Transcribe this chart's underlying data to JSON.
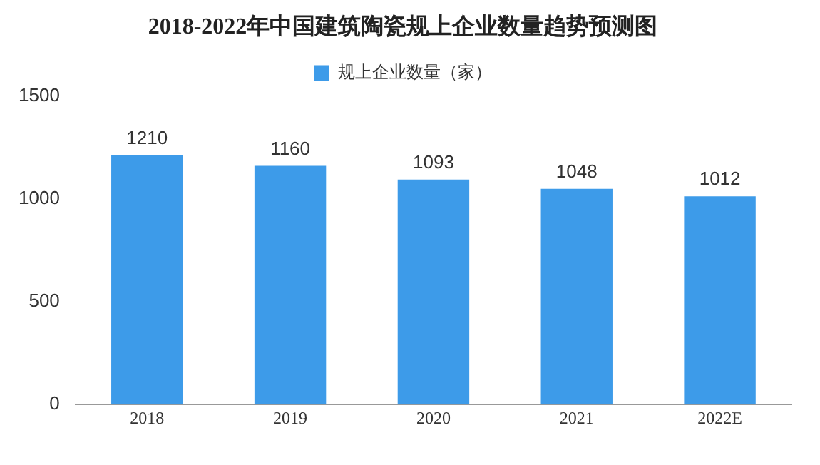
{
  "chart_data": {
    "type": "bar",
    "title": "2018-2022年中国建筑陶瓷规上企业数量趋势预测图",
    "categories": [
      "2018",
      "2019",
      "2020",
      "2021",
      "2022E"
    ],
    "series": [
      {
        "name": "规上企业数量（家）",
        "color": "#3d9be9",
        "values": [
          1210,
          1160,
          1093,
          1048,
          1012
        ]
      }
    ],
    "ylim": [
      0,
      1500
    ],
    "yticks": [
      0,
      500,
      1000,
      1500
    ],
    "grid": false,
    "legend": "top",
    "data_labels": true
  }
}
